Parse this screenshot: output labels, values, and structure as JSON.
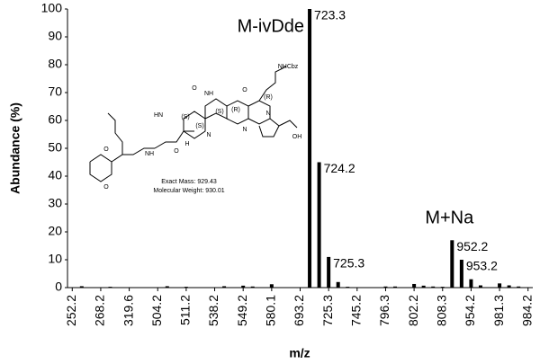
{
  "chart_data": {
    "type": "bar",
    "y_label": "Abundance (%)",
    "x_label": "m/z",
    "categories": [
      "252.2",
      null,
      null,
      "268.2",
      null,
      null,
      "319.6",
      null,
      null,
      "504.2",
      null,
      null,
      "511.2",
      null,
      null,
      "538.2",
      null,
      null,
      "549.2",
      null,
      null,
      "580.1",
      null,
      null,
      "693.2",
      null,
      null,
      "725.3",
      null,
      null,
      "745.2",
      null,
      null,
      "796.3",
      null,
      null,
      "802.2",
      null,
      null,
      "808.3",
      null,
      null,
      "954.2",
      null,
      null,
      "981.3",
      null,
      null,
      "984.2"
    ],
    "values": [
      0,
      0.5,
      0,
      0,
      0.3,
      0,
      0,
      0,
      0,
      0,
      0.5,
      0,
      0.3,
      0,
      0,
      0,
      0.5,
      0,
      0.7,
      0.4,
      0,
      1.2,
      0,
      0,
      0,
      100,
      45,
      11,
      2,
      0.3,
      0,
      0,
      0,
      0.4,
      0.4,
      0,
      1.3,
      0.7,
      0.4,
      0.3,
      17,
      10,
      3,
      0.8,
      0,
      1.5,
      0.8,
      0.4,
      0
    ],
    "peak_labels": [
      null,
      null,
      null,
      null,
      null,
      null,
      null,
      null,
      null,
      null,
      null,
      null,
      null,
      null,
      null,
      null,
      null,
      null,
      null,
      null,
      null,
      null,
      null,
      null,
      null,
      "723.3",
      "724.2",
      "725.3",
      null,
      null,
      null,
      null,
      null,
      null,
      null,
      null,
      null,
      null,
      null,
      null,
      "952.2",
      "953.2",
      null,
      null,
      null,
      null,
      null,
      null,
      null
    ],
    "color": "#000000",
    "ylim": [
      0,
      100
    ],
    "yticks": [
      0,
      10,
      20,
      30,
      40,
      50,
      60,
      70,
      80,
      90,
      100
    ],
    "grid": false,
    "annotations": [
      "M-ivDde",
      "M+Na"
    ],
    "inset": {
      "exact_mass": "Exact Mass: 929.43",
      "molecular_weight": "Molecular Weight: 930.01",
      "atoms": [
        "NHCbz",
        "OH",
        "O",
        "O",
        "O",
        "O",
        "O",
        "NH",
        "HN",
        "N",
        "N",
        "NH",
        "N",
        "H",
        "(S)",
        "(S)",
        "(R)",
        "(R)",
        "(S)"
      ]
    }
  }
}
